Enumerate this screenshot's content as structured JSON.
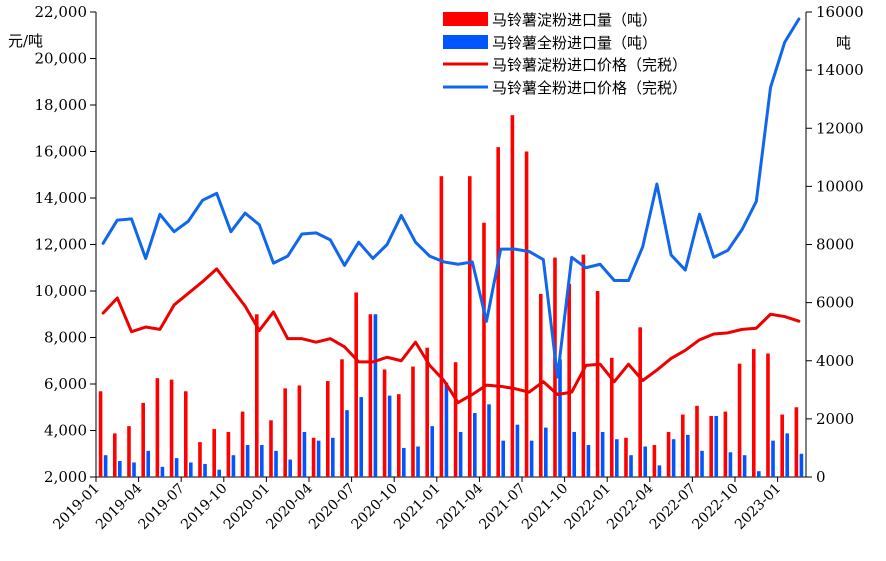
{
  "chart_data": {
    "type": "bar+line",
    "x": [
      "2019-01",
      "2019-02",
      "2019-03",
      "2019-04",
      "2019-05",
      "2019-06",
      "2019-07",
      "2019-08",
      "2019-09",
      "2019-10",
      "2019-11",
      "2019-12",
      "2020-01",
      "2020-02",
      "2020-03",
      "2020-04",
      "2020-05",
      "2020-06",
      "2020-07",
      "2020-08",
      "2020-09",
      "2020-10",
      "2020-11",
      "2020-12",
      "2021-01",
      "2021-02",
      "2021-03",
      "2021-04",
      "2021-05",
      "2021-06",
      "2021-07",
      "2021-08",
      "2021-09",
      "2021-10",
      "2021-11",
      "2021-12",
      "2022-01",
      "2022-02",
      "2022-03",
      "2022-04",
      "2022-05",
      "2022-06",
      "2022-07",
      "2022-08",
      "2022-09",
      "2022-10",
      "2022-11",
      "2022-12",
      "2023-01",
      "2023-02"
    ],
    "x_tick_labels": [
      "2019-01",
      "2019-04",
      "2019-07",
      "2019-10",
      "2020-01",
      "2020-04",
      "2020-07",
      "2020-10",
      "2021-01",
      "2021-04",
      "2021-07",
      "2021-10",
      "2022-01",
      "2022-04",
      "2022-07",
      "2022-10",
      "2023-01"
    ],
    "left_axis": {
      "unit_label": "元/吨",
      "ylim": [
        2000,
        22000
      ],
      "ticks": [
        "2,000",
        "4,000",
        "6,000",
        "8,000",
        "10,000",
        "12,000",
        "14,000",
        "16,000",
        "18,000",
        "20,000",
        "22,000"
      ]
    },
    "right_axis": {
      "unit_label": "吨",
      "ylim": [
        0,
        16000
      ],
      "ticks": [
        "0",
        "2000",
        "4000",
        "6000",
        "8000",
        "10000",
        "12000",
        "14000",
        "16000"
      ]
    },
    "series": [
      {
        "name": "马铃薯淀粉进口量（吨）",
        "kind": "bar",
        "axis": "right",
        "color": "#ff0000",
        "values": [
          2950,
          1500,
          1750,
          2550,
          3400,
          3350,
          2950,
          1200,
          1650,
          1550,
          2250,
          5600,
          1950,
          3050,
          3150,
          1350,
          3300,
          4050,
          6350,
          5600,
          3700,
          2850,
          3800,
          4450,
          10350,
          3950,
          10350,
          8750,
          11350,
          12450,
          11200,
          6300,
          7550,
          6650,
          7650,
          6400,
          4100,
          1350,
          5150,
          1100,
          1550,
          2150,
          2450,
          2100,
          2250,
          3900,
          4400,
          4250,
          2150,
          2400
        ]
      },
      {
        "name": "马铃薯全粉进口量（吨）",
        "kind": "bar",
        "axis": "right",
        "color": "#0055ff",
        "values": [
          750,
          550,
          500,
          900,
          350,
          650,
          500,
          450,
          250,
          750,
          1100,
          1100,
          900,
          600,
          1550,
          1250,
          1350,
          2300,
          2750,
          5600,
          2800,
          1000,
          1050,
          1750,
          3250,
          1550,
          2200,
          2500,
          1250,
          1800,
          1250,
          1700,
          4050,
          1550,
          1100,
          1550,
          1300,
          750,
          1050,
          400,
          1300,
          1450,
          900,
          2100,
          850,
          750,
          200,
          1250,
          1500,
          800
        ]
      },
      {
        "name": "马铃薯淀粉进口价格（完税）",
        "kind": "line",
        "axis": "left",
        "color": "#ee0000",
        "values": [
          9050,
          9700,
          8250,
          8450,
          8350,
          9400,
          9900,
          10400,
          10950,
          10150,
          9350,
          8300,
          9100,
          7950,
          7950,
          7800,
          7950,
          7600,
          6950,
          6950,
          7150,
          7000,
          7800,
          6800,
          6150,
          5200,
          5550,
          5950,
          5900,
          5800,
          5650,
          6100,
          5550,
          5650,
          6800,
          6850,
          6100,
          6850,
          6150,
          6600,
          7100,
          7450,
          7900,
          8150,
          8200,
          8350,
          8400,
          9000,
          8900,
          8700
        ]
      },
      {
        "name": "马铃薯全粉进口价格（完税）",
        "kind": "line",
        "axis": "left",
        "color": "#1166ee",
        "values": [
          12050,
          13050,
          13100,
          11400,
          13300,
          12550,
          13000,
          13900,
          14200,
          12550,
          13350,
          12850,
          11200,
          11500,
          12450,
          12500,
          12200,
          11100,
          12100,
          11400,
          12000,
          13250,
          12100,
          11500,
          11250,
          11150,
          11250,
          8700,
          11800,
          11800,
          11700,
          11350,
          6300,
          11450,
          11000,
          11150,
          10450,
          10450,
          11900,
          14600,
          11550,
          10900,
          13300,
          11450,
          11750,
          12650,
          13850,
          18750,
          20700,
          21700
        ]
      }
    ]
  }
}
